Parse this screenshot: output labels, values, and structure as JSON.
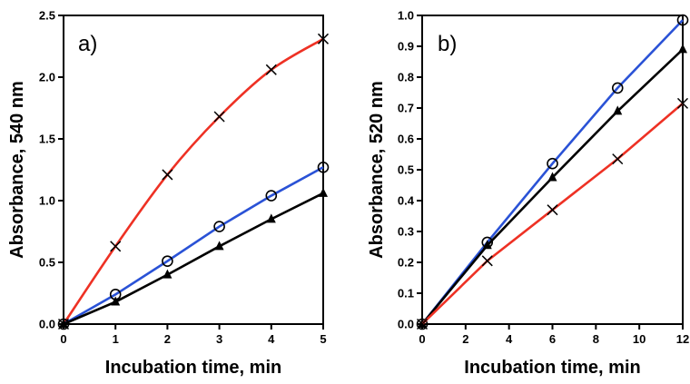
{
  "chart_data": [
    {
      "type": "line",
      "panel_label": "a)",
      "xlabel": "Incubation time,  min",
      "ylabel": "Absorbance,  540 nm",
      "xlim": [
        0,
        5
      ],
      "ylim": [
        0,
        2.5
      ],
      "xticks": [
        0,
        1,
        2,
        3,
        4,
        5
      ],
      "yticks": [
        0.0,
        0.5,
        1.0,
        1.5,
        2.0,
        2.5
      ],
      "ytick_labels": [
        "0.0",
        "0.5",
        "1.0",
        "1.5",
        "2.0",
        "2.5"
      ],
      "xtick_labels": [
        "0",
        "1",
        "2",
        "3",
        "4",
        "5"
      ],
      "grid": false,
      "series": [
        {
          "marker": "x",
          "color": "#ee3124",
          "style": "curve",
          "x": [
            0,
            1,
            2,
            3,
            4,
            5
          ],
          "y": [
            0.0,
            0.63,
            1.21,
            1.68,
            2.06,
            2.31
          ]
        },
        {
          "marker": "circle",
          "color": "#2a52d6",
          "style": "linear",
          "x": [
            0,
            1,
            2,
            3,
            4,
            5
          ],
          "y": [
            0.0,
            0.24,
            0.51,
            0.79,
            1.04,
            1.27
          ]
        },
        {
          "marker": "triangle",
          "color": "#000000",
          "style": "linear",
          "x": [
            0,
            1,
            2,
            3,
            4,
            5
          ],
          "y": [
            0.0,
            0.18,
            0.4,
            0.63,
            0.85,
            1.06
          ]
        }
      ]
    },
    {
      "type": "line",
      "panel_label": "b)",
      "xlabel": "Incubation time,  min",
      "ylabel": "Absorbance,  520 nm",
      "xlim": [
        0,
        12
      ],
      "ylim": [
        0,
        1.0
      ],
      "xticks": [
        0,
        2,
        4,
        6,
        8,
        10,
        12
      ],
      "yticks": [
        0.0,
        0.1,
        0.2,
        0.3,
        0.4,
        0.5,
        0.6,
        0.7,
        0.8,
        0.9,
        1.0
      ],
      "ytick_labels": [
        "0.0",
        "0.1",
        "0.2",
        "0.3",
        "0.4",
        "0.5",
        "0.6",
        "0.7",
        "0.8",
        "0.9",
        "1.0"
      ],
      "xtick_labels": [
        "0",
        "2",
        "4",
        "6",
        "8",
        "10",
        "12"
      ],
      "grid": false,
      "series": [
        {
          "marker": "circle",
          "color": "#2a52d6",
          "style": "linear",
          "x": [
            0,
            3,
            6,
            9,
            12
          ],
          "y": [
            0.0,
            0.265,
            0.52,
            0.765,
            0.985
          ]
        },
        {
          "marker": "triangle",
          "color": "#000000",
          "style": "linear",
          "x": [
            0,
            3,
            6,
            9,
            12
          ],
          "y": [
            0.0,
            0.255,
            0.475,
            0.69,
            0.89
          ]
        },
        {
          "marker": "x",
          "color": "#ee3124",
          "style": "linear",
          "x": [
            0,
            3,
            6,
            9,
            12
          ],
          "y": [
            0.0,
            0.205,
            0.37,
            0.535,
            0.715
          ]
        }
      ]
    }
  ]
}
